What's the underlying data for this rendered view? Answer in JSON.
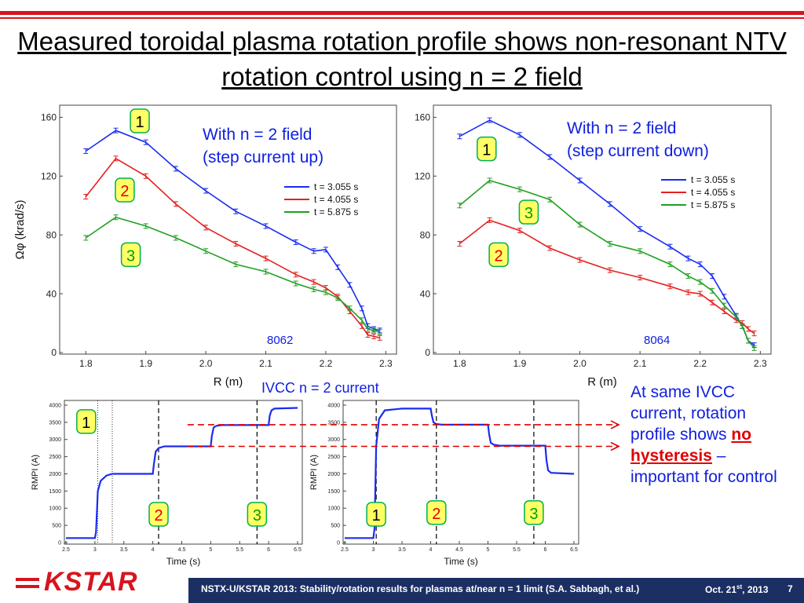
{
  "slide": {
    "title": "Measured toroidal plasma rotation profile shows non-resonant NTV rotation control using n = 2 field",
    "ivcc_label": "IVCC n = 2 current",
    "note": {
      "part1": "At same IVCC current, rotation profile shows ",
      "emph": "no hysteresis",
      "part2": " – important for control"
    },
    "footer": {
      "text": "NSTX-U/KSTAR 2013: Stability/rotation results for plasmas at/near  n = 1 limit (S.A. Sabbagh, et al.)",
      "date_main": "Oct. 21",
      "date_sup": "st",
      "date_year": ", 2013",
      "page": "7",
      "logo": "KSTAR"
    }
  },
  "chart_data": [
    {
      "type": "line",
      "id": "rot_up",
      "annotation": "With n = 2 field (step current up)",
      "annotation_line1": "With n = 2 field",
      "annotation_line2": "(step current up)",
      "shot_label": "8062",
      "xlabel": "R (m)",
      "ylabel": "Ωφ (krad/s)",
      "xlim": [
        1.78,
        2.31
      ],
      "ylim": [
        0,
        165
      ],
      "xticks": [
        "1.8",
        "1.9",
        "2.0",
        "2.1",
        "2.2",
        "2.3"
      ],
      "yticks": [
        "0",
        "40",
        "80",
        "120",
        "160"
      ],
      "markers": [
        {
          "label": "1",
          "color": "#000000",
          "x": 1.89,
          "y": 157
        },
        {
          "label": "2",
          "color": "#e00000",
          "x": 1.865,
          "y": 110
        },
        {
          "label": "3",
          "color": "#00a000",
          "x": 1.875,
          "y": 66
        }
      ],
      "series": [
        {
          "name": "t = 3.055 s",
          "color": "#1a2cf0",
          "x": [
            1.8,
            1.85,
            1.9,
            1.95,
            2.0,
            2.05,
            2.1,
            2.15,
            2.18,
            2.2,
            2.22,
            2.24,
            2.26,
            2.27,
            2.28,
            2.29
          ],
          "y": [
            137,
            151,
            143,
            125,
            110,
            96,
            86,
            75,
            69,
            70,
            58,
            46,
            30,
            18,
            16,
            15
          ]
        },
        {
          "name": "t = 4.055 s",
          "color": "#e62020",
          "x": [
            1.8,
            1.85,
            1.9,
            1.95,
            2.0,
            2.05,
            2.1,
            2.15,
            2.18,
            2.2,
            2.22,
            2.24,
            2.26,
            2.27,
            2.28,
            2.29
          ],
          "y": [
            106,
            132,
            120,
            101,
            85,
            74,
            64,
            53,
            48,
            44,
            38,
            28,
            18,
            12,
            11,
            10
          ]
        },
        {
          "name": "t = 5.875 s",
          "color": "#20a020",
          "x": [
            1.8,
            1.85,
            1.9,
            1.95,
            2.0,
            2.05,
            2.1,
            2.15,
            2.18,
            2.2,
            2.22,
            2.24,
            2.26,
            2.27,
            2.28,
            2.29
          ],
          "y": [
            78,
            92,
            86,
            78,
            69,
            60,
            55,
            47,
            43,
            41,
            37,
            30,
            22,
            16,
            15,
            14
          ]
        }
      ]
    },
    {
      "type": "line",
      "id": "rot_down",
      "annotation": "With n = 2 field (step current down)",
      "annotation_line1": "With n = 2 field",
      "annotation_line2": "(step current down)",
      "shot_label": "8064",
      "xlabel": "R (m)",
      "ylabel": "",
      "xlim": [
        1.78,
        2.31
      ],
      "ylim": [
        0,
        165
      ],
      "xticks": [
        "1.8",
        "1.9",
        "2.0",
        "2.1",
        "2.2",
        "2.3"
      ],
      "yticks": [
        "0",
        "40",
        "80",
        "120",
        "160"
      ],
      "markers": [
        {
          "label": "1",
          "color": "#000000",
          "x": 1.845,
          "y": 138
        },
        {
          "label": "3",
          "color": "#00a000",
          "x": 1.915,
          "y": 95
        },
        {
          "label": "2",
          "color": "#e00000",
          "x": 1.865,
          "y": 66
        }
      ],
      "series": [
        {
          "name": "t = 3.055 s",
          "color": "#1a2cf0",
          "x": [
            1.8,
            1.85,
            1.9,
            1.95,
            2.0,
            2.05,
            2.1,
            2.15,
            2.18,
            2.2,
            2.22,
            2.24,
            2.26,
            2.27,
            2.28,
            2.29
          ],
          "y": [
            147,
            158,
            148,
            133,
            117,
            101,
            84,
            72,
            64,
            60,
            52,
            38,
            25,
            18,
            8,
            5
          ]
        },
        {
          "name": "t = 4.055 s",
          "color": "#e62020",
          "x": [
            1.8,
            1.85,
            1.9,
            1.95,
            2.0,
            2.05,
            2.1,
            2.15,
            2.18,
            2.2,
            2.22,
            2.24,
            2.26,
            2.27,
            2.28,
            2.29
          ],
          "y": [
            74,
            90,
            83,
            71,
            63,
            56,
            51,
            45,
            41,
            40,
            34,
            28,
            22,
            20,
            16,
            13
          ]
        },
        {
          "name": "t = 5.875 s",
          "color": "#20a020",
          "x": [
            1.8,
            1.85,
            1.9,
            1.95,
            2.0,
            2.05,
            2.1,
            2.15,
            2.18,
            2.2,
            2.22,
            2.24,
            2.26,
            2.27,
            2.28,
            2.29
          ],
          "y": [
            100,
            117,
            111,
            104,
            87,
            74,
            69,
            60,
            52,
            48,
            42,
            32,
            24,
            18,
            8,
            3
          ]
        }
      ]
    },
    {
      "type": "line",
      "id": "rmpi_up",
      "xlabel": "Time (s)",
      "ylabel": "RMPI (A)",
      "xlim": [
        2.5,
        6.5
      ],
      "ylim": [
        0,
        4000
      ],
      "xticks": [
        "2.5",
        "3",
        "3.5",
        "4",
        "4.5",
        "5",
        "5.5",
        "6",
        "6.5"
      ],
      "yticks": [
        "0",
        "500",
        "1000",
        "1500",
        "2000",
        "2500",
        "3000",
        "3500",
        "4000"
      ],
      "markers": [
        {
          "label": "1",
          "color": "#000000",
          "x": 2.85,
          "y": 3500
        },
        {
          "label": "2",
          "color": "#e00000",
          "x": 4.1,
          "y": 800
        },
        {
          "label": "3",
          "color": "#00a000",
          "x": 5.8,
          "y": 800
        }
      ],
      "vlines_dashed": [
        4.1,
        5.8
      ],
      "vlines_dotted": [
        3.05,
        3.3
      ],
      "series": [
        {
          "name": "RMPI",
          "color": "#1a2cf0",
          "x": [
            2.5,
            3.0,
            3.02,
            3.05,
            3.1,
            3.2,
            3.3,
            4.0,
            4.02,
            4.05,
            4.1,
            4.2,
            5.0,
            5.02,
            5.05,
            5.1,
            5.2,
            6.0,
            6.02,
            6.05,
            6.1,
            6.5
          ],
          "y": [
            130,
            130,
            300,
            1500,
            1800,
            1950,
            2000,
            2000,
            2300,
            2650,
            2750,
            2800,
            2800,
            3100,
            3350,
            3400,
            3420,
            3420,
            3700,
            3850,
            3900,
            3920
          ]
        }
      ]
    },
    {
      "type": "line",
      "id": "rmpi_down",
      "xlabel": "Time (s)",
      "ylabel": "RMPI (A)",
      "xlim": [
        2.5,
        6.5
      ],
      "ylim": [
        0,
        4000
      ],
      "xticks": [
        "2.5",
        "3",
        "3.5",
        "4",
        "4.5",
        "5",
        "5.5",
        "6",
        "6.5"
      ],
      "yticks": [
        "0",
        "500",
        "1000",
        "1500",
        "2000",
        "2500",
        "3000",
        "3500",
        "4000"
      ],
      "markers": [
        {
          "label": "1",
          "color": "#000000",
          "x": 3.05,
          "y": 800
        },
        {
          "label": "2",
          "color": "#e00000",
          "x": 4.1,
          "y": 850
        },
        {
          "label": "3",
          "color": "#00a000",
          "x": 5.8,
          "y": 850
        }
      ],
      "vlines_dashed": [
        3.05,
        4.1,
        5.8
      ],
      "vlines_dotted": [],
      "series": [
        {
          "name": "RMPI",
          "color": "#1a2cf0",
          "x": [
            2.5,
            3.0,
            3.02,
            3.05,
            3.1,
            3.2,
            3.5,
            4.0,
            4.02,
            4.05,
            4.1,
            4.2,
            5.0,
            5.02,
            5.05,
            5.1,
            5.2,
            6.0,
            6.02,
            6.05,
            6.1,
            6.5
          ],
          "y": [
            130,
            130,
            400,
            2800,
            3600,
            3850,
            3900,
            3900,
            3700,
            3500,
            3450,
            3430,
            3430,
            3150,
            2900,
            2850,
            2820,
            2820,
            2400,
            2100,
            2030,
            2000
          ]
        }
      ]
    }
  ]
}
